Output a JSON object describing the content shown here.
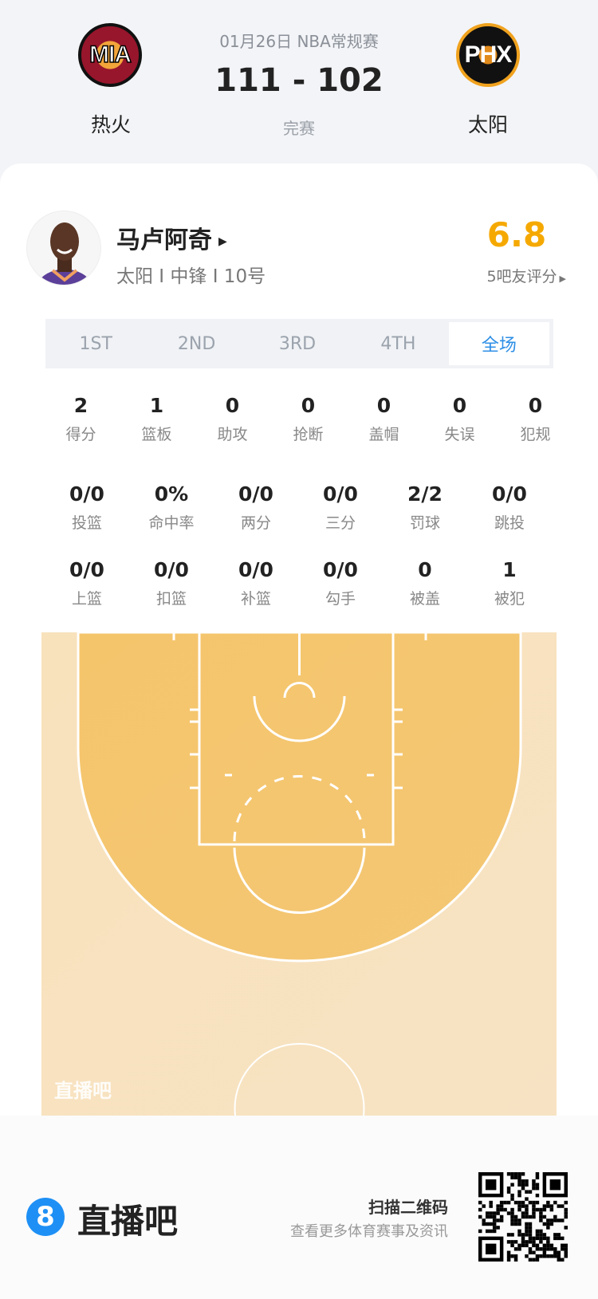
{
  "match": {
    "date_league": "01月26日 NBA常规赛",
    "score": "111 - 102",
    "status": "完赛",
    "home": {
      "abbr": "MIA",
      "name": "热火"
    },
    "away": {
      "abbr": "PHX",
      "name": "太阳"
    }
  },
  "player": {
    "name": "马卢阿奇",
    "info": "太阳 I 中锋 I 10号",
    "rating": "6.8",
    "rating_label": "5吧友评分",
    "rating_color": "#f5a900"
  },
  "tabs": [
    {
      "label": "1ST"
    },
    {
      "label": "2ND"
    },
    {
      "label": "3RD"
    },
    {
      "label": "4TH"
    },
    {
      "label": "全场",
      "active": true
    }
  ],
  "stats_main": [
    {
      "value": "2",
      "label": "得分"
    },
    {
      "value": "1",
      "label": "篮板"
    },
    {
      "value": "0",
      "label": "助攻"
    },
    {
      "value": "0",
      "label": "抢断"
    },
    {
      "value": "0",
      "label": "盖帽"
    },
    {
      "value": "0",
      "label": "失误"
    },
    {
      "value": "0",
      "label": "犯规"
    }
  ],
  "stats_shooting": [
    {
      "value": "0/0",
      "label": "投篮"
    },
    {
      "value": "0%",
      "label": "命中率"
    },
    {
      "value": "0/0",
      "label": "两分"
    },
    {
      "value": "0/0",
      "label": "三分"
    },
    {
      "value": "2/2",
      "label": "罚球"
    },
    {
      "value": "0/0",
      "label": "跳投"
    }
  ],
  "stats_detail": [
    {
      "value": "0/0",
      "label": "上篮"
    },
    {
      "value": "0/0",
      "label": "扣篮"
    },
    {
      "value": "0/0",
      "label": "补篮"
    },
    {
      "value": "0/0",
      "label": "勾手"
    },
    {
      "value": "0",
      "label": "被盖"
    },
    {
      "value": "1",
      "label": "被犯"
    }
  ],
  "court": {
    "watermark": "直播吧"
  },
  "footer": {
    "brand_mark": "8",
    "brand": "直播吧",
    "qr_title": "扫描二维码",
    "qr_sub": "查看更多体育赛事及资讯",
    "brand_color": "#1e90f5"
  }
}
